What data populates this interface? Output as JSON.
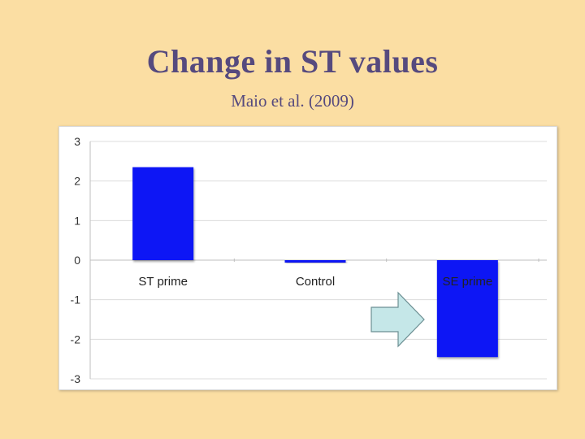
{
  "slide": {
    "title": "Change in ST values",
    "subtitle": "Maio et al. (2009)"
  },
  "colors": {
    "background": "#fbdea3",
    "title": "#564a7e",
    "bar": "#0a14f5",
    "arrow_fill": "#c5e7e8",
    "arrow_stroke": "#6c8f93"
  },
  "chart_data": {
    "type": "bar",
    "title": "",
    "xlabel": "",
    "ylabel": "",
    "categories": [
      "ST prime",
      "Control",
      "SE prime"
    ],
    "values": [
      2.35,
      -0.03,
      -2.45
    ],
    "ylim": [
      -3,
      3
    ],
    "yticks": [
      3,
      2,
      1,
      0,
      -1,
      -2,
      -3
    ],
    "grid": true,
    "legend": "none"
  },
  "annotation": {
    "shape": "right-arrow",
    "points_to": "SE prime"
  }
}
